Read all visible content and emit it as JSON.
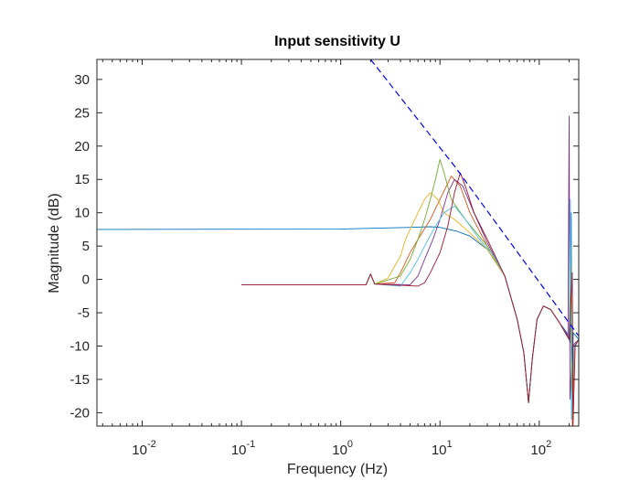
{
  "chart_data": {
    "type": "line",
    "title": "Input sensitivity U",
    "xlabel": "Frequency  (Hz)",
    "ylabel": "Magnitude (dB)",
    "xscale": "log",
    "xlim": [
      0.0035,
      250
    ],
    "ylim": [
      -22,
      33
    ],
    "grid": false,
    "x_ticks": [
      {
        "value": 0.01,
        "base": "10",
        "exp": "-2"
      },
      {
        "value": 0.1,
        "base": "10",
        "exp": "-1"
      },
      {
        "value": 1,
        "base": "10",
        "exp": "0"
      },
      {
        "value": 10,
        "base": "10",
        "exp": "1"
      },
      {
        "value": 100,
        "base": "10",
        "exp": "2"
      }
    ],
    "y_ticks": [
      "-20",
      "-15",
      "-10",
      "-5",
      "0",
      "5",
      "10",
      "15",
      "20",
      "25",
      "30"
    ],
    "series": [
      {
        "color": "#0072bd",
        "points": [
          [
            0.0035,
            7.5
          ],
          [
            1,
            7.55
          ],
          [
            5,
            7.8
          ],
          [
            8,
            7.9
          ],
          [
            10,
            7.8
          ],
          [
            15,
            7.2
          ],
          [
            20,
            6.5
          ],
          [
            30,
            4.5
          ],
          [
            45,
            0.5
          ],
          [
            60,
            -6
          ],
          [
            70,
            -11
          ],
          [
            78,
            -18.5
          ],
          [
            85,
            -12
          ],
          [
            95,
            -6
          ],
          [
            110,
            -4
          ],
          [
            130,
            -4.5
          ],
          [
            160,
            -6.5
          ],
          [
            190,
            -8
          ],
          [
            205,
            -9.5
          ],
          [
            210,
            10
          ],
          [
            214,
            -20
          ],
          [
            220,
            -8
          ],
          [
            250,
            -9
          ]
        ]
      },
      {
        "color": "#d95319",
        "points": [
          [
            0.1,
            -0.8
          ],
          [
            1.8,
            -0.8
          ],
          [
            2,
            0.8
          ],
          [
            2.2,
            -0.7
          ],
          [
            3.5,
            -0.5
          ],
          [
            4,
            1
          ],
          [
            5,
            4
          ],
          [
            6,
            6
          ],
          [
            8,
            9
          ],
          [
            10,
            12
          ],
          [
            13,
            15.5
          ],
          [
            16,
            14
          ],
          [
            20,
            10
          ],
          [
            30,
            5
          ],
          [
            45,
            0.5
          ],
          [
            60,
            -6
          ],
          [
            70,
            -11
          ],
          [
            78,
            -18.5
          ],
          [
            85,
            -12
          ],
          [
            95,
            -6
          ],
          [
            110,
            -4
          ],
          [
            130,
            -4.5
          ],
          [
            160,
            -6.5
          ],
          [
            200,
            -9
          ],
          [
            210,
            2
          ],
          [
            216,
            -22
          ],
          [
            225,
            -10
          ],
          [
            250,
            -9
          ]
        ]
      },
      {
        "color": "#edb120",
        "points": [
          [
            0.1,
            -0.8
          ],
          [
            1.8,
            -0.8
          ],
          [
            2,
            0.8
          ],
          [
            2.2,
            -0.7
          ],
          [
            3,
            0.2
          ],
          [
            3.5,
            2
          ],
          [
            4,
            3.5
          ],
          [
            4.5,
            6
          ],
          [
            5,
            7.5
          ],
          [
            6,
            10
          ],
          [
            7,
            12
          ],
          [
            8,
            13
          ],
          [
            9.5,
            12
          ],
          [
            11,
            10
          ],
          [
            14,
            9
          ],
          [
            20,
            7
          ],
          [
            30,
            4.5
          ],
          [
            45,
            0.5
          ],
          [
            60,
            -6
          ],
          [
            70,
            -11
          ],
          [
            78,
            -18.5
          ],
          [
            85,
            -12
          ],
          [
            95,
            -6
          ],
          [
            110,
            -4
          ],
          [
            130,
            -4.5
          ],
          [
            160,
            -6.5
          ],
          [
            200,
            -9
          ],
          [
            212,
            -2
          ],
          [
            218,
            -21
          ],
          [
            230,
            -10
          ],
          [
            250,
            -9
          ]
        ]
      },
      {
        "color": "#7e2f8e",
        "points": [
          [
            0.1,
            -0.8
          ],
          [
            1.8,
            -0.8
          ],
          [
            2,
            0.8
          ],
          [
            2.2,
            -0.7
          ],
          [
            5,
            -0.8
          ],
          [
            6,
            0.5
          ],
          [
            7,
            3
          ],
          [
            8.5,
            6
          ],
          [
            10,
            9
          ],
          [
            12,
            13
          ],
          [
            14,
            15
          ],
          [
            17,
            14
          ],
          [
            22,
            10
          ],
          [
            30,
            5.5
          ],
          [
            45,
            0.5
          ],
          [
            60,
            -6
          ],
          [
            70,
            -11
          ],
          [
            78,
            -18.5
          ],
          [
            85,
            -12
          ],
          [
            95,
            -6
          ],
          [
            110,
            -4
          ],
          [
            130,
            -4.5
          ],
          [
            160,
            -6.5
          ],
          [
            195,
            -8.5
          ],
          [
            200,
            24.5
          ],
          [
            204,
            -18
          ],
          [
            215,
            -10
          ],
          [
            250,
            -9
          ]
        ]
      },
      {
        "color": "#77ac30",
        "points": [
          [
            0.1,
            -0.8
          ],
          [
            1.8,
            -0.8
          ],
          [
            2,
            0.8
          ],
          [
            2.2,
            -0.7
          ],
          [
            4,
            0.5
          ],
          [
            5,
            3
          ],
          [
            6,
            6
          ],
          [
            7,
            9
          ],
          [
            8,
            12
          ],
          [
            9,
            15
          ],
          [
            10,
            18
          ],
          [
            11,
            16
          ],
          [
            13,
            12
          ],
          [
            18,
            9
          ],
          [
            30,
            5
          ],
          [
            45,
            0.5
          ],
          [
            60,
            -6
          ],
          [
            70,
            -11
          ],
          [
            78,
            -18.5
          ],
          [
            85,
            -12
          ],
          [
            95,
            -6
          ],
          [
            110,
            -4
          ],
          [
            130,
            -4.5
          ],
          [
            160,
            -6.5
          ],
          [
            200,
            -9
          ],
          [
            208,
            5
          ],
          [
            213,
            -19
          ],
          [
            225,
            -10
          ],
          [
            250,
            -9
          ]
        ]
      },
      {
        "color": "#4dbeee",
        "points": [
          [
            0.1,
            -0.8
          ],
          [
            1.8,
            -0.8
          ],
          [
            2,
            0.8
          ],
          [
            2.2,
            -0.7
          ],
          [
            4,
            -1
          ],
          [
            5,
            1
          ],
          [
            6,
            3
          ],
          [
            7,
            5
          ],
          [
            9,
            8
          ],
          [
            11,
            10
          ],
          [
            14,
            11
          ],
          [
            18,
            9
          ],
          [
            25,
            6
          ],
          [
            35,
            3.5
          ],
          [
            45,
            0.5
          ],
          [
            60,
            -6
          ],
          [
            70,
            -11
          ],
          [
            78,
            -18.5
          ],
          [
            85,
            -12
          ],
          [
            95,
            -6
          ],
          [
            110,
            -4
          ],
          [
            130,
            -4.5
          ],
          [
            160,
            -6.5
          ],
          [
            200,
            -9
          ],
          [
            206,
            12
          ],
          [
            211,
            -21
          ],
          [
            225,
            -10
          ],
          [
            250,
            -9
          ]
        ]
      },
      {
        "color": "#a2142f",
        "points": [
          [
            0.1,
            -0.8
          ],
          [
            1.8,
            -0.8
          ],
          [
            2,
            0.8
          ],
          [
            2.2,
            -0.7
          ],
          [
            6,
            -1
          ],
          [
            7,
            -0.5
          ],
          [
            8,
            1
          ],
          [
            10,
            4
          ],
          [
            12,
            8
          ],
          [
            14,
            13
          ],
          [
            16,
            16
          ],
          [
            18,
            14
          ],
          [
            22,
            10
          ],
          [
            30,
            6
          ],
          [
            45,
            0.5
          ],
          [
            60,
            -6
          ],
          [
            70,
            -11
          ],
          [
            78,
            -18.5
          ],
          [
            85,
            -12
          ],
          [
            95,
            -6
          ],
          [
            110,
            -4
          ],
          [
            130,
            -4.5
          ],
          [
            160,
            -6.5
          ],
          [
            200,
            -9
          ],
          [
            215,
            1
          ],
          [
            219,
            -22
          ],
          [
            230,
            -10
          ],
          [
            250,
            -9
          ]
        ]
      },
      {
        "color": "#0000ff",
        "dashed": true,
        "points": [
          [
            2,
            33
          ],
          [
            14,
            17
          ],
          [
            250,
            -8.5
          ]
        ]
      }
    ]
  }
}
